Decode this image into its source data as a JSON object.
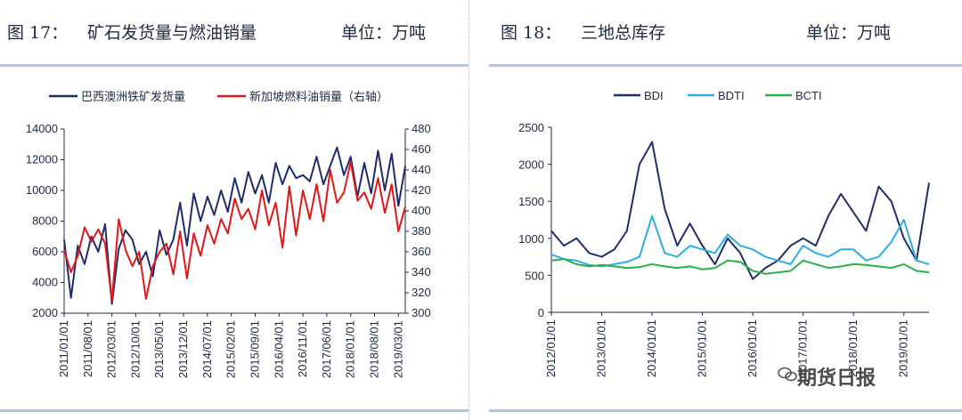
{
  "left": {
    "fig_label": "图 17：",
    "title": "矿石发货量与燃油销量",
    "unit": "单位：万吨",
    "chart_data": {
      "type": "line",
      "legend_placement": "top",
      "grid": false,
      "series": [
        {
          "name": "巴西澳洲铁矿发货量",
          "axis": "left",
          "color": "#1f2d6b",
          "x": [
            "2011/01/01",
            "2011/03/01",
            "2011/05/01",
            "2011/07/01",
            "2011/09/01",
            "2011/11/01",
            "2012/01/01",
            "2012/03/01",
            "2012/05/01",
            "2012/07/01",
            "2012/09/01",
            "2012/11/01",
            "2013/01/01",
            "2013/03/01",
            "2013/05/01",
            "2013/07/01",
            "2013/09/01",
            "2013/11/01",
            "2014/01/01",
            "2014/03/01",
            "2014/05/01",
            "2014/07/01",
            "2014/09/01",
            "2014/11/01",
            "2015/01/01",
            "2015/03/01",
            "2015/05/01",
            "2015/07/01",
            "2015/09/01",
            "2015/11/01",
            "2016/01/01",
            "2016/03/01",
            "2016/05/01",
            "2016/07/01",
            "2016/09/01",
            "2016/11/01",
            "2017/01/01",
            "2017/03/01",
            "2017/05/01",
            "2017/07/01",
            "2017/09/01",
            "2017/11/01",
            "2018/01/01",
            "2018/03/01",
            "2018/05/01",
            "2018/07/01",
            "2018/09/01",
            "2018/11/01",
            "2019/01/01",
            "2019/03/01",
            "2019/05/01"
          ],
          "values": [
            6800,
            3000,
            6400,
            5200,
            7000,
            6000,
            7800,
            2600,
            6200,
            7400,
            6800,
            5200,
            6000,
            4400,
            7400,
            5800,
            6800,
            9200,
            6400,
            9800,
            8000,
            9600,
            8400,
            10000,
            8600,
            10800,
            9200,
            11200,
            9800,
            11000,
            9200,
            11800,
            10400,
            11600,
            10800,
            11000,
            10600,
            12200,
            10400,
            11600,
            12800,
            11000,
            12200,
            9600,
            11800,
            9800,
            12600,
            10000,
            12400,
            9000,
            11600
          ]
        },
        {
          "name": "新加坡燃料油销量（右轴）",
          "axis": "right",
          "color": "#e01818",
          "x": [
            "2011/01/01",
            "2011/03/01",
            "2011/05/01",
            "2011/07/01",
            "2011/09/01",
            "2011/11/01",
            "2012/01/01",
            "2012/03/01",
            "2012/05/01",
            "2012/07/01",
            "2012/09/01",
            "2012/11/01",
            "2013/01/01",
            "2013/03/01",
            "2013/05/01",
            "2013/07/01",
            "2013/09/01",
            "2013/11/01",
            "2014/01/01",
            "2014/03/01",
            "2014/05/01",
            "2014/07/01",
            "2014/09/01",
            "2014/11/01",
            "2015/01/01",
            "2015/03/01",
            "2015/05/01",
            "2015/07/01",
            "2015/09/01",
            "2015/11/01",
            "2016/01/01",
            "2016/03/01",
            "2016/05/01",
            "2016/07/01",
            "2016/09/01",
            "2016/11/01",
            "2017/01/01",
            "2017/03/01",
            "2017/05/01",
            "2017/07/01",
            "2017/09/01",
            "2017/11/01",
            "2018/01/01",
            "2018/03/01",
            "2018/05/01",
            "2018/07/01",
            "2018/09/01",
            "2018/11/01",
            "2019/01/01",
            "2019/03/01",
            "2019/05/01"
          ],
          "values": [
            362,
            340,
            356,
            384,
            370,
            382,
            368,
            312,
            392,
            362,
            346,
            360,
            314,
            346,
            360,
            368,
            338,
            380,
            334,
            378,
            356,
            386,
            368,
            392,
            378,
            412,
            392,
            402,
            382,
            420,
            386,
            408,
            364,
            424,
            376,
            420,
            392,
            426,
            390,
            440,
            408,
            418,
            448,
            410,
            418,
            402,
            432,
            398,
            426,
            380,
            404
          ]
        }
      ],
      "xticks": [
        "2011/01/01",
        "2011/08/01",
        "2012/03/01",
        "2012/10/01",
        "2013/05/01",
        "2013/12/01",
        "2014/07/01",
        "2015/02/01",
        "2015/09/01",
        "2016/04/01",
        "2016/11/01",
        "2017/06/01",
        "2018/01/01",
        "2018/08/01",
        "2019/03/01"
      ],
      "ylim_left": [
        2000,
        14000
      ],
      "yticks_left": [
        2000,
        4000,
        6000,
        8000,
        10000,
        12000,
        14000
      ],
      "ylim_right": [
        300,
        480
      ],
      "yticks_right": [
        300,
        320,
        340,
        360,
        380,
        400,
        420,
        440,
        460,
        480
      ]
    }
  },
  "right": {
    "fig_label": "图 18：",
    "title": "三地总库存",
    "unit": "单位：万吨",
    "chart_data": {
      "type": "line",
      "legend_placement": "top",
      "grid": false,
      "series": [
        {
          "name": "BDI",
          "color": "#1f2d6b",
          "x": [
            "2012/01/01",
            "2012/04/01",
            "2012/07/01",
            "2012/10/01",
            "2013/01/01",
            "2013/04/01",
            "2013/07/01",
            "2013/10/01",
            "2014/01/01",
            "2014/04/01",
            "2014/07/01",
            "2014/10/01",
            "2015/01/01",
            "2015/04/01",
            "2015/07/01",
            "2015/10/01",
            "2016/01/01",
            "2016/04/01",
            "2016/07/01",
            "2016/10/01",
            "2017/01/01",
            "2017/04/01",
            "2017/07/01",
            "2017/10/01",
            "2018/01/01",
            "2018/04/01",
            "2018/07/01",
            "2018/10/01",
            "2019/01/01",
            "2019/04/01",
            "2019/07/01"
          ],
          "values": [
            1100,
            900,
            1000,
            800,
            750,
            850,
            1100,
            2000,
            2300,
            1400,
            900,
            1200,
            900,
            650,
            1000,
            800,
            450,
            600,
            700,
            900,
            1000,
            900,
            1300,
            1600,
            1350,
            1100,
            1700,
            1500,
            1000,
            700,
            1750
          ]
        },
        {
          "name": "BDTI",
          "color": "#29aee6",
          "x": [
            "2012/01/01",
            "2012/04/01",
            "2012/07/01",
            "2012/10/01",
            "2013/01/01",
            "2013/04/01",
            "2013/07/01",
            "2013/10/01",
            "2014/01/01",
            "2014/04/01",
            "2014/07/01",
            "2014/10/01",
            "2015/01/01",
            "2015/04/01",
            "2015/07/01",
            "2015/10/01",
            "2016/01/01",
            "2016/04/01",
            "2016/07/01",
            "2016/10/01",
            "2017/01/01",
            "2017/04/01",
            "2017/07/01",
            "2017/10/01",
            "2018/01/01",
            "2018/04/01",
            "2018/07/01",
            "2018/10/01",
            "2019/01/01",
            "2019/04/01",
            "2019/07/01"
          ],
          "values": [
            780,
            720,
            700,
            640,
            620,
            650,
            680,
            750,
            1300,
            800,
            750,
            900,
            850,
            800,
            1050,
            900,
            850,
            750,
            700,
            650,
            900,
            800,
            750,
            850,
            850,
            700,
            750,
            950,
            1250,
            700,
            650
          ]
        },
        {
          "name": "BCTI",
          "color": "#2ab04a",
          "x": [
            "2012/01/01",
            "2012/04/01",
            "2012/07/01",
            "2012/10/01",
            "2013/01/01",
            "2013/04/01",
            "2013/07/01",
            "2013/10/01",
            "2014/01/01",
            "2014/04/01",
            "2014/07/01",
            "2014/10/01",
            "2015/01/01",
            "2015/04/01",
            "2015/07/01",
            "2015/10/01",
            "2016/01/01",
            "2016/04/01",
            "2016/07/01",
            "2016/10/01",
            "2017/01/01",
            "2017/04/01",
            "2017/07/01",
            "2017/10/01",
            "2018/01/01",
            "2018/04/01",
            "2018/07/01",
            "2018/10/01",
            "2019/01/01",
            "2019/04/01",
            "2019/07/01"
          ],
          "values": [
            700,
            720,
            650,
            620,
            640,
            620,
            600,
            610,
            650,
            620,
            600,
            620,
            580,
            600,
            700,
            680,
            560,
            520,
            540,
            560,
            700,
            650,
            600,
            620,
            650,
            640,
            620,
            600,
            650,
            560,
            540
          ]
        }
      ],
      "xticks": [
        "2012/01/01",
        "2013/01/01",
        "2014/01/01",
        "2015/01/01",
        "2016/01/01",
        "2017/01/01",
        "2018/01/01",
        "2019/01/01"
      ],
      "ylim": [
        0,
        2500
      ],
      "yticks": [
        0,
        500,
        1000,
        1500,
        2000,
        2500
      ]
    },
    "watermark": "期货日报"
  }
}
